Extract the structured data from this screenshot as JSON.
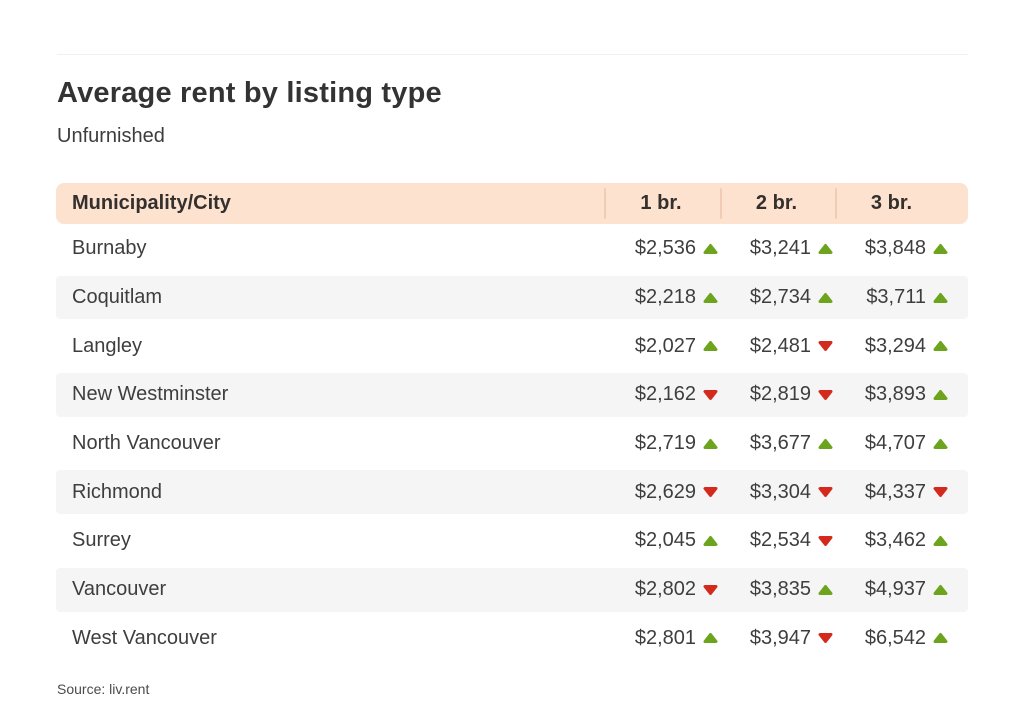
{
  "chart_data": {
    "type": "table",
    "title": "Average rent by listing type",
    "subtitle": "Unfurnished",
    "source": "Source: liv.rent",
    "columns": [
      "Municipality/City",
      "1 br.",
      "2 br.",
      "3 br."
    ],
    "rows": [
      {
        "city": "Burnaby",
        "rents": [
          2536,
          3241,
          3848
        ],
        "display": [
          "$2,536",
          "$3,241",
          "$3,848"
        ],
        "trends": [
          "up",
          "up",
          "up"
        ]
      },
      {
        "city": "Coquitlam",
        "rents": [
          2218,
          2734,
          3711
        ],
        "display": [
          "$2,218",
          "$2,734",
          "$3,711"
        ],
        "trends": [
          "up",
          "up",
          "up"
        ]
      },
      {
        "city": "Langley",
        "rents": [
          2027,
          2481,
          3294
        ],
        "display": [
          "$2,027",
          "$2,481",
          "$3,294"
        ],
        "trends": [
          "up",
          "down",
          "up"
        ]
      },
      {
        "city": "New Westminster",
        "rents": [
          2162,
          2819,
          3893
        ],
        "display": [
          "$2,162",
          "$2,819",
          "$3,893"
        ],
        "trends": [
          "down",
          "down",
          "up"
        ]
      },
      {
        "city": "North Vancouver",
        "rents": [
          2719,
          3677,
          4707
        ],
        "display": [
          "$2,719",
          "$3,677",
          "$4,707"
        ],
        "trends": [
          "up",
          "up",
          "up"
        ]
      },
      {
        "city": "Richmond",
        "rents": [
          2629,
          3304,
          4337
        ],
        "display": [
          "$2,629",
          "$3,304",
          "$4,337"
        ],
        "trends": [
          "down",
          "down",
          "down"
        ]
      },
      {
        "city": "Surrey",
        "rents": [
          2045,
          2534,
          3462
        ],
        "display": [
          "$2,045",
          "$2,534",
          "$3,462"
        ],
        "trends": [
          "up",
          "down",
          "up"
        ]
      },
      {
        "city": "Vancouver",
        "rents": [
          2802,
          3835,
          4937
        ],
        "display": [
          "$2,802",
          "$3,835",
          "$4,937"
        ],
        "trends": [
          "down",
          "up",
          "up"
        ]
      },
      {
        "city": "West Vancouver",
        "rents": [
          2801,
          3947,
          6542
        ],
        "display": [
          "$2,801",
          "$3,947",
          "$6,542"
        ],
        "trends": [
          "up",
          "down",
          "up"
        ]
      }
    ]
  },
  "colors": {
    "header_bg": "#fde2d0",
    "header_divider": "#f1ccb2",
    "row_alt_bg": "#f5f5f6",
    "trend_up": "#6ca41d",
    "trend_down": "#d32a1d"
  }
}
